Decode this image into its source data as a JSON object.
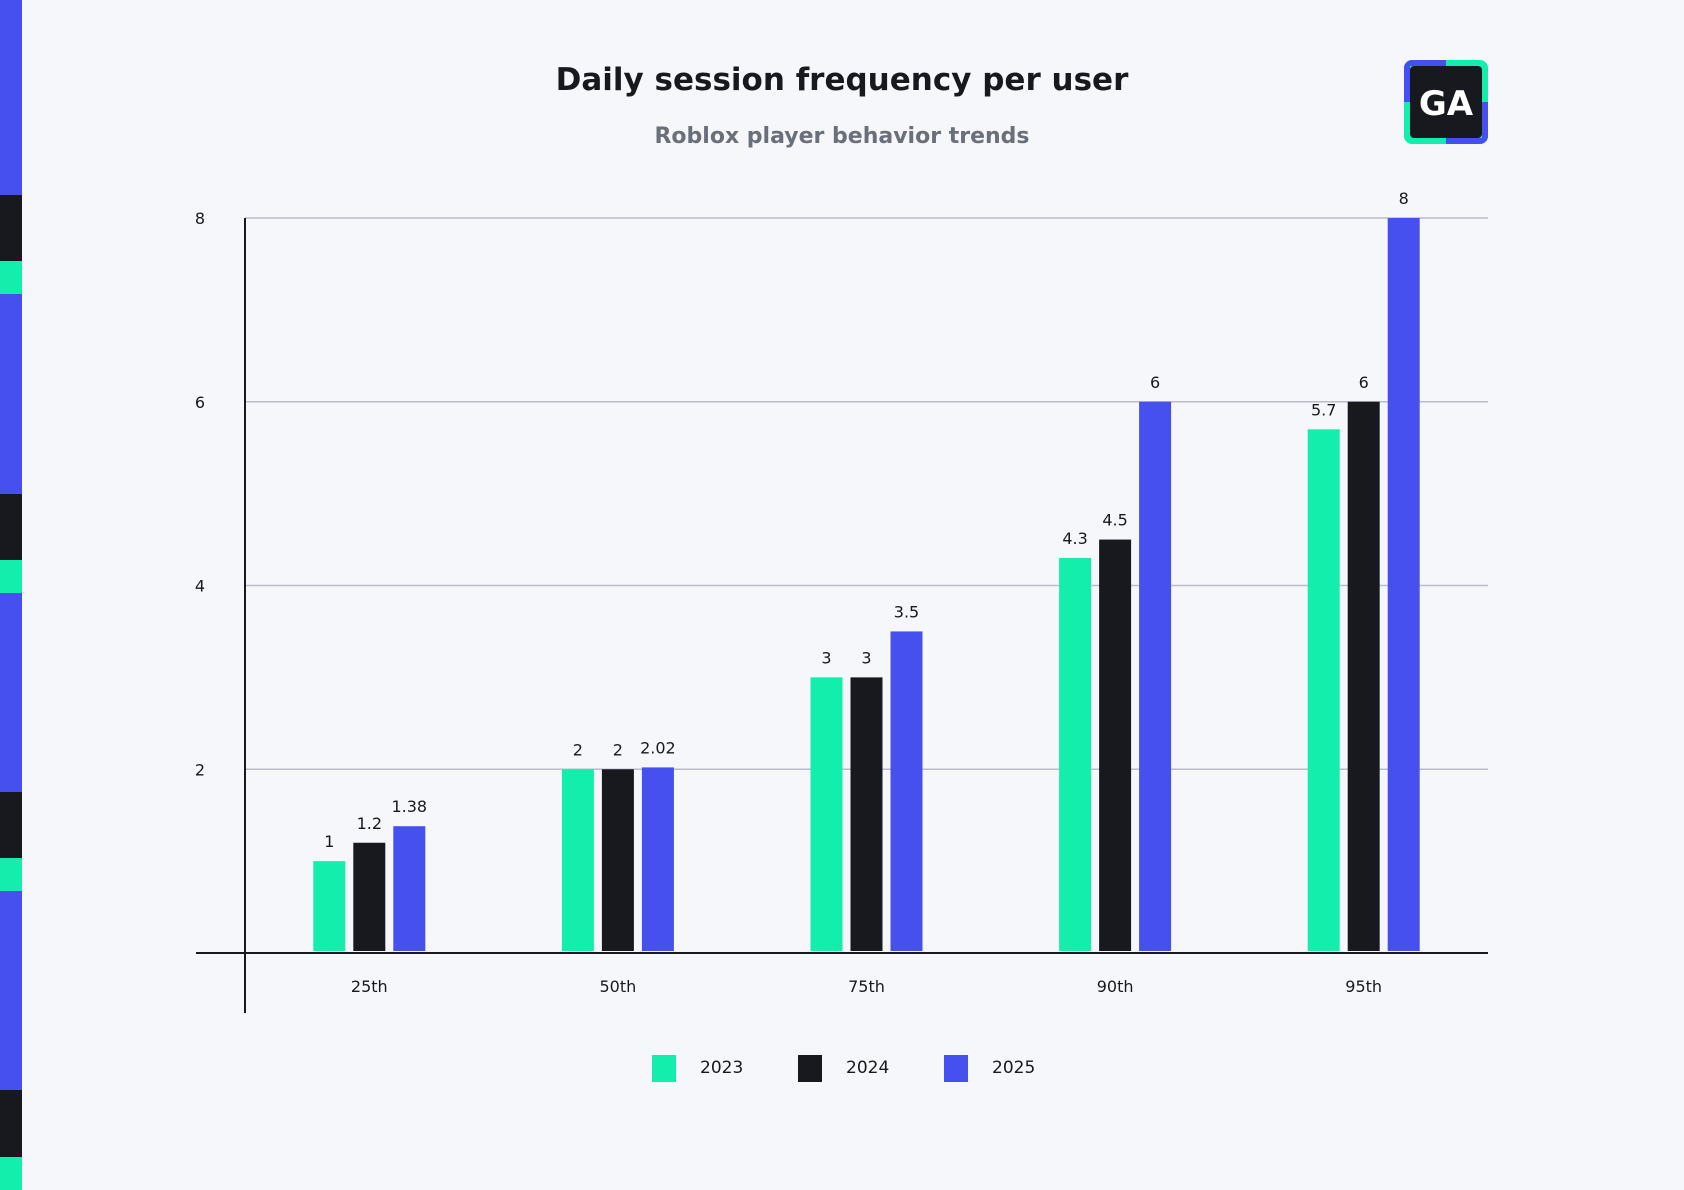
{
  "chart_data": {
    "type": "bar",
    "title": "Daily session frequency per user",
    "subtitle": "Roblox player behavior trends",
    "xlabel": "",
    "ylabel": "",
    "categories": [
      "25th",
      "50th",
      "75th",
      "90th",
      "95th"
    ],
    "series": [
      {
        "name": "2023",
        "color": "#14eeac",
        "values": [
          1,
          2,
          3,
          4.3,
          5.7
        ]
      },
      {
        "name": "2024",
        "color": "#17191f",
        "values": [
          1.2,
          2,
          3,
          4.5,
          6
        ]
      },
      {
        "name": "2025",
        "color": "#4550ef",
        "values": [
          1.38,
          2.02,
          3.5,
          6,
          8
        ]
      }
    ],
    "ylim": [
      0,
      8
    ],
    "yticks": [
      2,
      4,
      6,
      8
    ],
    "grid": true,
    "legend_position": "bottom-center",
    "data_labels": true
  },
  "logo": {
    "text": "GA",
    "icon": "ga-logo-icon"
  },
  "colors": {
    "background": "#f6f7fa",
    "green": "#14eeac",
    "black": "#17191f",
    "blue": "#4550ef",
    "grid": "#b9bccc"
  }
}
